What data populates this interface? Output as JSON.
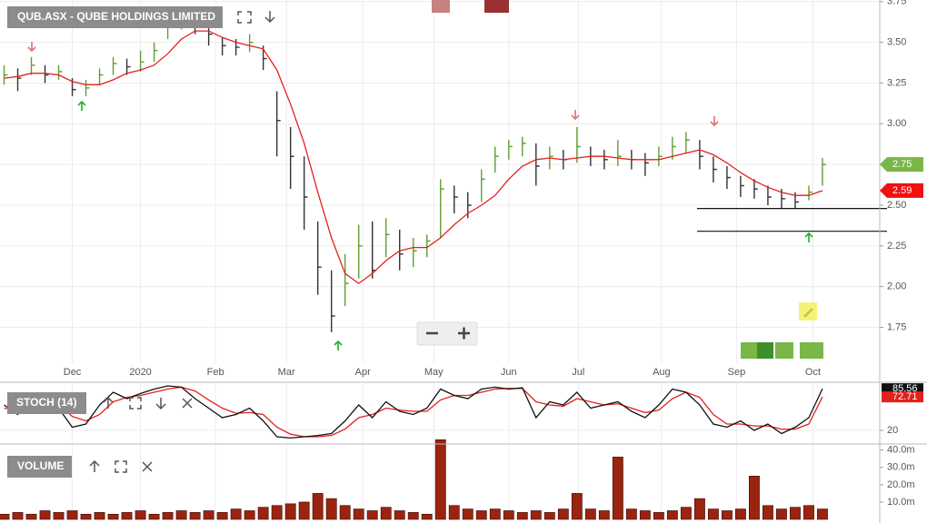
{
  "chart_data": [
    {
      "type": "ohlc",
      "title": "QUB.ASX - QUBE HOLDINGS LIMITED",
      "x": [
        0,
        1,
        2,
        3,
        4,
        5,
        6,
        7,
        8,
        9,
        10,
        11,
        12,
        13,
        14,
        15,
        16,
        17,
        18,
        19,
        20,
        21,
        22,
        23,
        24,
        25,
        26,
        27,
        28,
        29,
        30,
        31,
        32,
        33,
        34,
        35,
        36,
        37,
        38,
        39,
        40,
        41,
        42,
        43,
        44,
        45,
        46,
        47,
        48,
        49,
        50,
        51,
        52,
        53,
        54,
        55,
        56,
        57,
        58,
        59,
        60
      ],
      "high": [
        3.36,
        3.34,
        3.41,
        3.36,
        3.36,
        3.28,
        3.27,
        3.34,
        3.41,
        3.4,
        3.45,
        3.5,
        3.68,
        3.72,
        3.68,
        3.6,
        3.53,
        3.52,
        3.55,
        3.48,
        3.2,
        2.98,
        2.8,
        2.4,
        2.1,
        2.2,
        2.38,
        2.4,
        2.42,
        2.35,
        2.3,
        2.32,
        2.66,
        2.62,
        2.58,
        2.72,
        2.86,
        2.9,
        2.92,
        2.88,
        2.86,
        2.84,
        2.98,
        2.86,
        2.84,
        2.9,
        2.84,
        2.82,
        2.86,
        2.92,
        2.95,
        2.9,
        2.8,
        2.74,
        2.68,
        2.66,
        2.62,
        2.6,
        2.58,
        2.62,
        2.79
      ],
      "low": [
        3.24,
        3.2,
        3.3,
        3.25,
        3.27,
        3.17,
        3.17,
        3.24,
        3.3,
        3.3,
        3.32,
        3.38,
        3.52,
        3.58,
        3.55,
        3.48,
        3.42,
        3.42,
        3.44,
        3.33,
        2.8,
        2.6,
        2.35,
        1.95,
        1.72,
        1.88,
        2.05,
        2.05,
        2.18,
        2.1,
        2.12,
        2.18,
        2.3,
        2.45,
        2.42,
        2.52,
        2.7,
        2.78,
        2.8,
        2.62,
        2.72,
        2.72,
        2.76,
        2.74,
        2.72,
        2.74,
        2.72,
        2.68,
        2.74,
        2.78,
        2.82,
        2.72,
        2.64,
        2.6,
        2.55,
        2.54,
        2.5,
        2.48,
        2.48,
        2.53,
        2.62
      ],
      "close": [
        3.3,
        3.28,
        3.36,
        3.3,
        3.32,
        3.21,
        3.22,
        3.3,
        3.37,
        3.35,
        3.38,
        3.45,
        3.62,
        3.66,
        3.6,
        3.55,
        3.48,
        3.47,
        3.5,
        3.4,
        3.02,
        2.8,
        2.55,
        2.12,
        1.82,
        2.02,
        2.25,
        2.1,
        2.32,
        2.2,
        2.22,
        2.28,
        2.6,
        2.55,
        2.5,
        2.66,
        2.8,
        2.86,
        2.88,
        2.74,
        2.8,
        2.78,
        2.86,
        2.8,
        2.78,
        2.8,
        2.78,
        2.76,
        2.8,
        2.86,
        2.9,
        2.8,
        2.72,
        2.67,
        2.62,
        2.6,
        2.55,
        2.54,
        2.52,
        2.58,
        2.75
      ],
      "up_color": "#5f9e35",
      "down_color": "#333333",
      "series": [
        {
          "color": "#e3211c",
          "values": [
            3.28,
            3.29,
            3.31,
            3.31,
            3.3,
            3.26,
            3.24,
            3.24,
            3.27,
            3.31,
            3.33,
            3.36,
            3.43,
            3.52,
            3.57,
            3.57,
            3.53,
            3.5,
            3.48,
            3.46,
            3.33,
            3.12,
            2.88,
            2.58,
            2.3,
            2.08,
            2.02,
            2.08,
            2.16,
            2.22,
            2.24,
            2.24,
            2.3,
            2.38,
            2.45,
            2.5,
            2.56,
            2.66,
            2.74,
            2.78,
            2.79,
            2.78,
            2.79,
            2.8,
            2.8,
            2.79,
            2.78,
            2.78,
            2.78,
            2.8,
            2.82,
            2.84,
            2.81,
            2.76,
            2.7,
            2.65,
            2.61,
            2.58,
            2.56,
            2.56,
            2.59
          ]
        }
      ],
      "levels": [
        2.48,
        2.34
      ],
      "xlim": [
        -0.3,
        64.2
      ],
      "xticks": [
        {
          "value": 5,
          "label": "Dec"
        },
        {
          "value": 10,
          "label": "2020"
        },
        {
          "value": 15.5,
          "label": "Feb"
        },
        {
          "value": 20.7,
          "label": "Mar"
        },
        {
          "value": 26.3,
          "label": "Apr"
        },
        {
          "value": 31.5,
          "label": "May"
        },
        {
          "value": 37,
          "label": "Jun"
        },
        {
          "value": 42.1,
          "label": "Jul"
        },
        {
          "value": 48.2,
          "label": "Aug"
        },
        {
          "value": 53.7,
          "label": "Sep"
        },
        {
          "value": 59.3,
          "label": "Oct"
        }
      ],
      "ylim": [
        1.53,
        3.76
      ],
      "yticks": [
        1.75,
        {
          "value": 2,
          "label": "2.00"
        },
        2.25,
        {
          "value": 2.5,
          "label": "2.50"
        },
        2.75,
        {
          "value": 3,
          "label": "3.00"
        },
        3.25,
        {
          "value": 3.5,
          "label": "3.50"
        },
        3.75
      ],
      "grid": true
    },
    {
      "type": "line",
      "title": "STOCH (14)",
      "series": [
        {
          "color": "#111111",
          "values": [
            60,
            45,
            75,
            50,
            55,
            25,
            30,
            60,
            80,
            70,
            78,
            85,
            90,
            88,
            70,
            55,
            40,
            45,
            55,
            35,
            10,
            8,
            10,
            12,
            15,
            35,
            60,
            40,
            65,
            50,
            45,
            55,
            85,
            75,
            70,
            85,
            88,
            85,
            87,
            40,
            65,
            60,
            80,
            55,
            60,
            65,
            50,
            40,
            60,
            85,
            80,
            60,
            30,
            25,
            35,
            20,
            30,
            15,
            25,
            40,
            85.56
          ]
        },
        {
          "color": "#e3211c",
          "values": [
            55,
            52,
            58,
            57,
            60,
            42,
            35,
            45,
            65,
            72,
            75,
            80,
            85,
            88,
            82,
            68,
            55,
            47,
            48,
            45,
            25,
            14,
            10,
            10,
            12,
            22,
            40,
            45,
            55,
            52,
            50,
            50,
            68,
            75,
            75,
            80,
            85,
            86,
            86,
            65,
            60,
            58,
            70,
            65,
            60,
            62,
            55,
            48,
            52,
            70,
            80,
            72,
            45,
            30,
            30,
            27,
            27,
            22,
            22,
            30,
            72.71
          ]
        }
      ],
      "ylim": [
        0,
        94.3
      ],
      "yticks": [
        20
      ]
    },
    {
      "type": "bar",
      "title": "VOLUME",
      "color": "#9b2410",
      "values": [
        3,
        4,
        3,
        5,
        4,
        5,
        3,
        4,
        3,
        4,
        5,
        3,
        4,
        5,
        4,
        5,
        4,
        6,
        5,
        7,
        8,
        9,
        10,
        15,
        12,
        8,
        6,
        5,
        7,
        5,
        4,
        3,
        46,
        8,
        6,
        5,
        6,
        5,
        4,
        5,
        4,
        6,
        15,
        6,
        5,
        36,
        6,
        5,
        4,
        5,
        7,
        12,
        6,
        5,
        6,
        25,
        8,
        6,
        7,
        8,
        6
      ],
      "ylim": [
        0,
        43
      ],
      "yticks": [
        {
          "value": 10,
          "label": "10.0m"
        },
        {
          "value": 20,
          "label": "20.0m"
        },
        {
          "value": 30,
          "label": "30.0m"
        },
        {
          "value": 40,
          "label": "40.0m"
        }
      ]
    }
  ]
}
